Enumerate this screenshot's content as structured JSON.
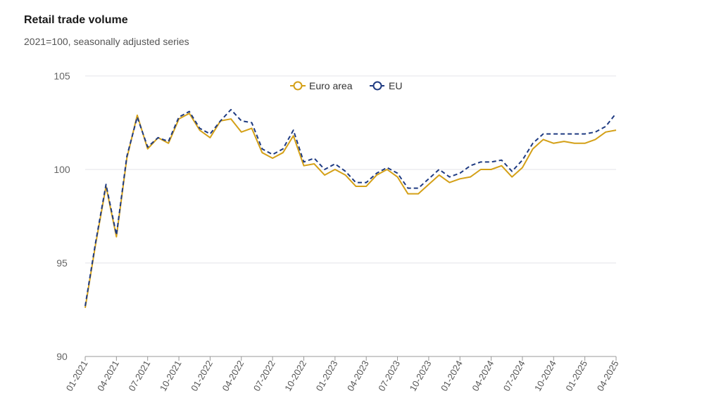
{
  "chart_data": {
    "type": "line",
    "title": "Retail trade volume",
    "subtitle": "2021=100, seasonally adjusted series",
    "xlabel": "",
    "ylabel": "",
    "ylim": [
      90,
      105
    ],
    "yticks": [
      "90",
      "95",
      "100",
      "105"
    ],
    "grid": true,
    "legend_position": "top-center",
    "x_tick_labels": [
      "01-2021",
      "04-2021",
      "07-2021",
      "10-2021",
      "01-2022",
      "04-2022",
      "07-2022",
      "10-2022",
      "01-2023",
      "04-2023",
      "07-2023",
      "10-2023",
      "01-2024",
      "04-2024",
      "07-2024",
      "10-2024",
      "01-2025",
      "04-2025"
    ],
    "x": [
      "01-2021",
      "02-2021",
      "03-2021",
      "04-2021",
      "05-2021",
      "06-2021",
      "07-2021",
      "08-2021",
      "09-2021",
      "10-2021",
      "11-2021",
      "12-2021",
      "01-2022",
      "02-2022",
      "03-2022",
      "04-2022",
      "05-2022",
      "06-2022",
      "07-2022",
      "08-2022",
      "09-2022",
      "10-2022",
      "11-2022",
      "12-2022",
      "01-2023",
      "02-2023",
      "03-2023",
      "04-2023",
      "05-2023",
      "06-2023",
      "07-2023",
      "08-2023",
      "09-2023",
      "10-2023",
      "11-2023",
      "12-2023",
      "01-2024",
      "02-2024",
      "03-2024",
      "04-2024",
      "05-2024",
      "06-2024",
      "07-2024",
      "08-2024",
      "09-2024",
      "10-2024",
      "11-2024",
      "12-2024",
      "01-2025",
      "02-2025",
      "03-2025",
      "04-2025"
    ],
    "series": [
      {
        "name": "Euro area",
        "color": "#d4a017",
        "dash": "solid",
        "values": [
          92.6,
          96.0,
          99.1,
          96.4,
          100.6,
          102.9,
          101.1,
          101.7,
          101.4,
          102.7,
          103.0,
          102.1,
          101.7,
          102.6,
          102.7,
          102.0,
          102.2,
          100.9,
          100.6,
          100.9,
          101.8,
          100.2,
          100.3,
          99.7,
          100.0,
          99.7,
          99.1,
          99.1,
          99.7,
          100.0,
          99.6,
          98.7,
          98.7,
          99.2,
          99.7,
          99.3,
          99.5,
          99.6,
          100.0,
          100.0,
          100.2,
          99.6,
          100.1,
          101.1,
          101.6,
          101.4,
          101.5,
          101.4,
          101.4,
          101.6,
          102.0,
          102.1
        ]
      },
      {
        "name": "EU",
        "color": "#1f3b82",
        "dash": "dashed",
        "values": [
          92.7,
          96.1,
          99.2,
          96.5,
          100.7,
          102.8,
          101.2,
          101.7,
          101.5,
          102.8,
          103.1,
          102.2,
          101.9,
          102.6,
          103.2,
          102.6,
          102.5,
          101.1,
          100.8,
          101.1,
          102.1,
          100.4,
          100.6,
          100.0,
          100.3,
          99.9,
          99.3,
          99.3,
          99.8,
          100.1,
          99.8,
          99.0,
          99.0,
          99.5,
          100.0,
          99.6,
          99.8,
          100.2,
          100.4,
          100.4,
          100.5,
          99.9,
          100.5,
          101.4,
          101.9,
          101.9,
          101.9,
          101.9,
          101.9,
          102.0,
          102.3,
          103.0
        ]
      }
    ]
  }
}
